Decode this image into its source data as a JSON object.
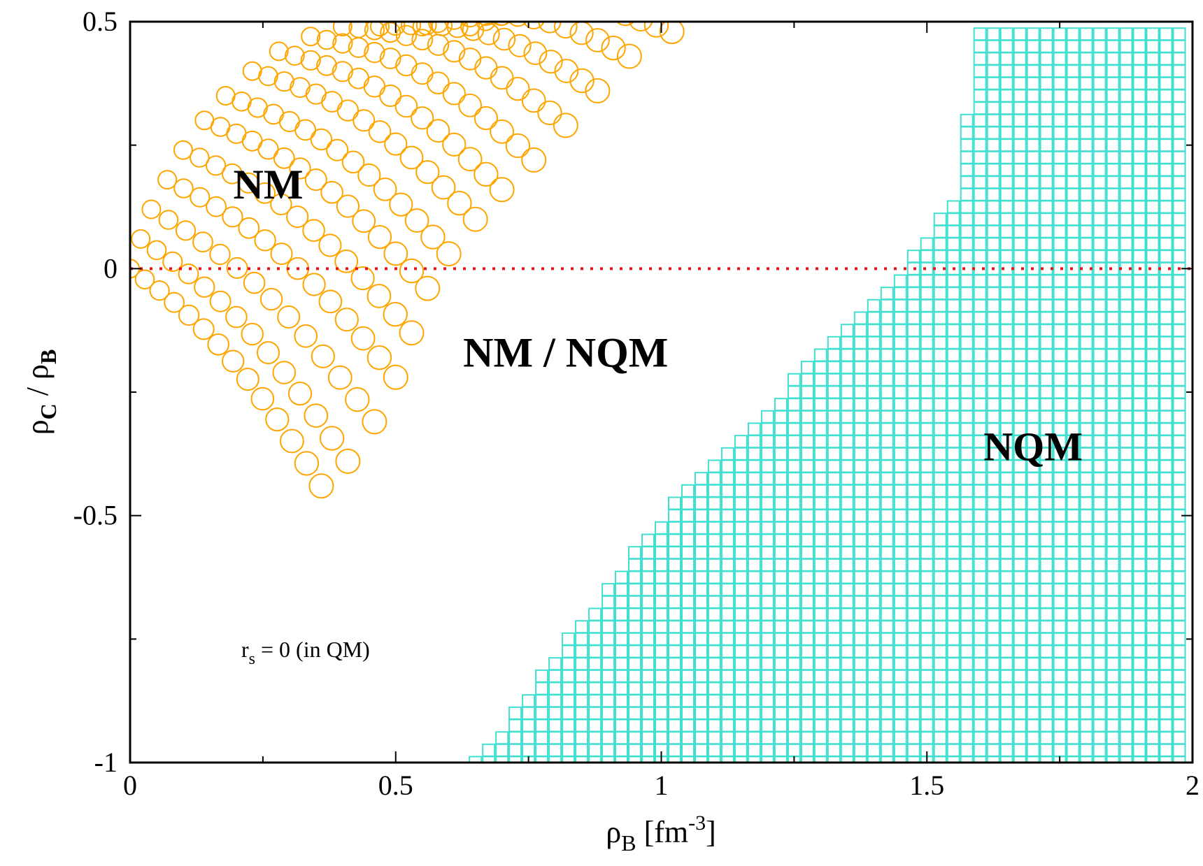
{
  "chart_data": {
    "type": "scatter",
    "xlabel": {
      "main": "ρ",
      "sub": "B",
      "rest": " [fm",
      "sup": "-3",
      "end": "]"
    },
    "ylabel": {
      "p1": "ρ",
      "s1": "C",
      "mid": " / ρ",
      "s2": "B"
    },
    "xlim": [
      0,
      2
    ],
    "ylim": [
      -1,
      0.5
    ],
    "x_ticks": [
      {
        "value": 0,
        "label": "0"
      },
      {
        "value": 0.5,
        "label": "0.5"
      },
      {
        "value": 1,
        "label": "1"
      },
      {
        "value": 1.5,
        "label": "1.5"
      },
      {
        "value": 2,
        "label": "2"
      }
    ],
    "y_ticks": [
      {
        "value": -1,
        "label": "-1"
      },
      {
        "value": -0.5,
        "label": "-0.5"
      },
      {
        "value": 0,
        "label": "0"
      },
      {
        "value": 0.5,
        "label": "0.5"
      }
    ],
    "x_minor_step": 0.25,
    "y_minor_step": 0.25,
    "grid": false,
    "reference_line": {
      "y": 0,
      "style": "dotted",
      "color": "#e8141b"
    },
    "series": [
      {
        "marker": "circle",
        "color": "#ffa500",
        "families": [
          {
            "x0": 0.0,
            "y0": 0.0,
            "x1": 0.36,
            "y1": -0.44,
            "n": 14
          },
          {
            "x0": 0.02,
            "y0": 0.06,
            "x1": 0.41,
            "y1": -0.39,
            "n": 14
          },
          {
            "x0": 0.04,
            "y0": 0.12,
            "x1": 0.46,
            "y1": -0.31,
            "n": 14
          },
          {
            "x0": 0.07,
            "y0": 0.18,
            "x1": 0.5,
            "y1": -0.22,
            "n": 15
          },
          {
            "x0": 0.1,
            "y0": 0.24,
            "x1": 0.53,
            "y1": -0.13,
            "n": 15
          },
          {
            "x0": 0.14,
            "y0": 0.3,
            "x1": 0.56,
            "y1": -0.04,
            "n": 15
          },
          {
            "x0": 0.18,
            "y0": 0.35,
            "x1": 0.6,
            "y1": 0.03,
            "n": 15
          },
          {
            "x0": 0.23,
            "y0": 0.4,
            "x1": 0.65,
            "y1": 0.1,
            "n": 15
          },
          {
            "x0": 0.28,
            "y0": 0.44,
            "x1": 0.7,
            "y1": 0.16,
            "n": 15
          },
          {
            "x0": 0.34,
            "y0": 0.47,
            "x1": 0.76,
            "y1": 0.22,
            "n": 15
          },
          {
            "x0": 0.4,
            "y0": 0.49,
            "x1": 0.82,
            "y1": 0.29,
            "n": 15
          },
          {
            "x0": 0.47,
            "y0": 0.49,
            "x1": 0.88,
            "y1": 0.36,
            "n": 15
          },
          {
            "x0": 0.55,
            "y0": 0.49,
            "x1": 0.94,
            "y1": 0.43,
            "n": 14
          },
          {
            "x0": 0.64,
            "y0": 0.49,
            "x1": 1.02,
            "y1": 0.48,
            "n": 14
          }
        ]
      },
      {
        "marker": "square",
        "color": "#40e0d0",
        "x_start": 0.65,
        "x_end": 1.99,
        "x_step": 0.025,
        "y_start": -1.0,
        "y_end": 0.48,
        "y_step": 0.025,
        "boundary": [
          [
            0.65,
            -1.0
          ],
          [
            1.0,
            -0.5
          ],
          [
            1.45,
            0.0
          ],
          [
            1.55,
            0.15
          ],
          [
            1.6,
            0.48
          ]
        ]
      }
    ],
    "region_labels": [
      {
        "text": "NM",
        "x": 0.26,
        "y": 0.17
      },
      {
        "text": "NM / NQM",
        "x": 0.82,
        "y": -0.17
      },
      {
        "text": "NQM",
        "x": 1.7,
        "y": -0.36
      }
    ],
    "annotation": {
      "main": "r",
      "sub": "s",
      "rest": " = 0 (in QM)"
    }
  }
}
